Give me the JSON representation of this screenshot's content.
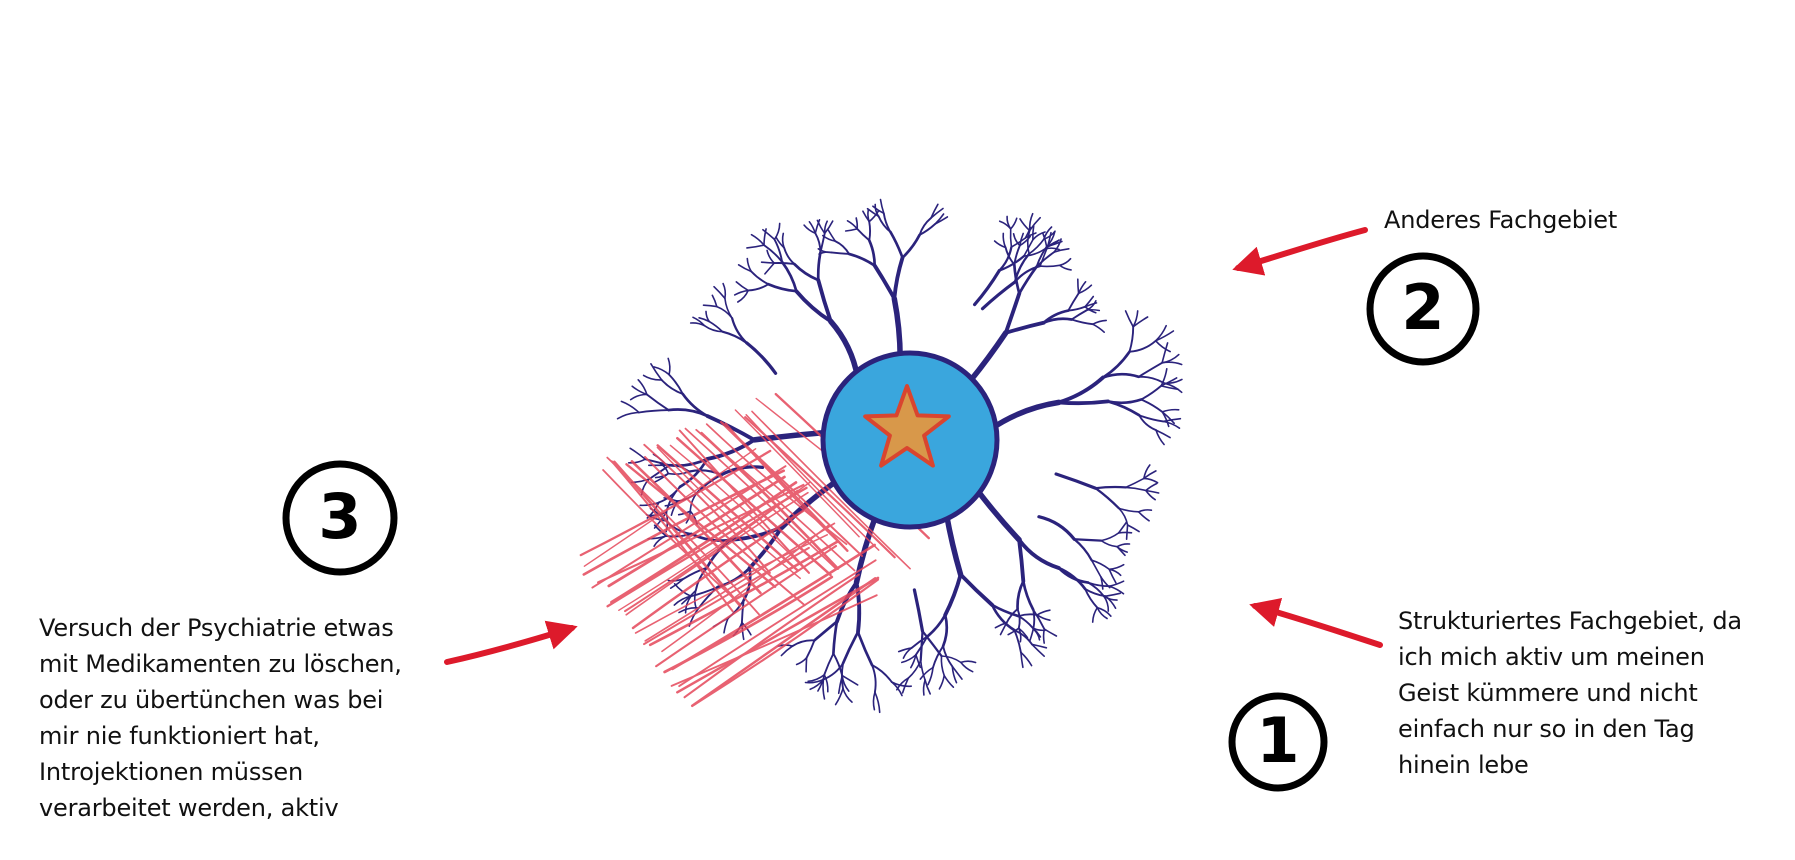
{
  "colors": {
    "dendrite": "#2b237c",
    "soma_fill": "#3aa6dd",
    "soma_stroke": "#2b237c",
    "star_fill": "#d8984a",
    "star_stroke": "#d9452f",
    "scribble": "#e5475a",
    "arrow": "#dd1a2b",
    "text": "#111111"
  },
  "annotations": [
    {
      "number": "1",
      "text": "Strukturiertes Fachgebiet, da\nich mich aktiv um meinen\nGeist kümmere und nicht\neinfach nur so in den Tag\nhinein lebe"
    },
    {
      "number": "2",
      "text": "Anderes Fachgebiet"
    },
    {
      "number": "3",
      "text": "Versuch der Psychiatrie etwas\nmit Medikamenten zu löschen,\noder zu übertünchen was bei\nmir nie funktioniert hat,\nIntrojektionen müssen\nverarbeitet werden, aktiv"
    }
  ],
  "icons": {
    "center": "star-icon",
    "cell": "neuron-icon",
    "crossout": "scribble-hatching"
  }
}
